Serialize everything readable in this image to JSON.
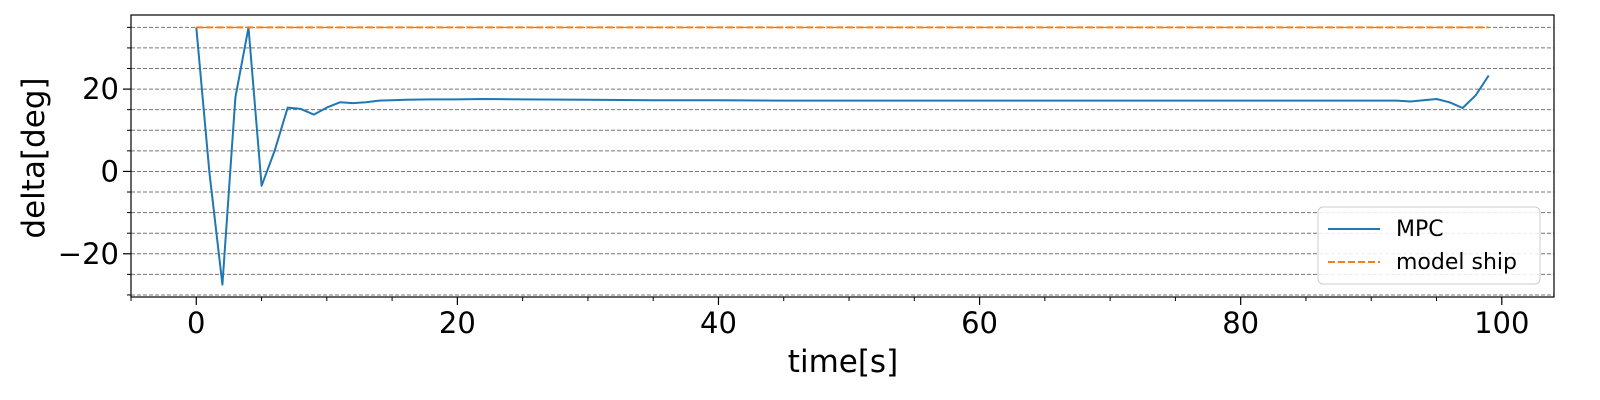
{
  "chart_data": {
    "type": "line",
    "xlabel": "time[s]",
    "ylabel": "delta[deg]",
    "xlim": [
      -5,
      104
    ],
    "ylim": [
      -30.5,
      38
    ],
    "x_major_ticks": [
      0,
      20,
      40,
      60,
      80,
      100
    ],
    "x_tick_labels": [
      "0",
      "20",
      "40",
      "60",
      "80",
      "100"
    ],
    "y_major_ticks": [
      -20,
      0,
      20
    ],
    "y_tick_labels": [
      "−20",
      "0",
      "20"
    ],
    "grid": "horizontal dashed every 5 deg",
    "legend_position": "lower-right",
    "series": [
      {
        "name": "MPC",
        "style": "solid",
        "color": "#1f77b4",
        "x": [
          0,
          1,
          2,
          3,
          4,
          5,
          6,
          7,
          8,
          9,
          10,
          11,
          12,
          13,
          14,
          15,
          16,
          18,
          20,
          22,
          25,
          30,
          35,
          40,
          45,
          50,
          55,
          60,
          65,
          70,
          75,
          80,
          85,
          90,
          92,
          93,
          95,
          96,
          97,
          98,
          99
        ],
        "y": [
          35,
          0,
          -27.5,
          18,
          35,
          -3.5,
          5,
          15.5,
          15.2,
          13.8,
          15.5,
          16.8,
          16.6,
          16.8,
          17.2,
          17.3,
          17.4,
          17.5,
          17.5,
          17.6,
          17.5,
          17.4,
          17.3,
          17.3,
          17.2,
          17.2,
          17.2,
          17.2,
          17.2,
          17.2,
          17.2,
          17.2,
          17.2,
          17.2,
          17.2,
          17.0,
          17.6,
          16.8,
          15.4,
          18.5,
          23.3
        ]
      },
      {
        "name": "model ship",
        "style": "dashed",
        "color": "#ff7f0e",
        "x": [
          0,
          99
        ],
        "y": [
          35,
          35
        ]
      }
    ]
  }
}
